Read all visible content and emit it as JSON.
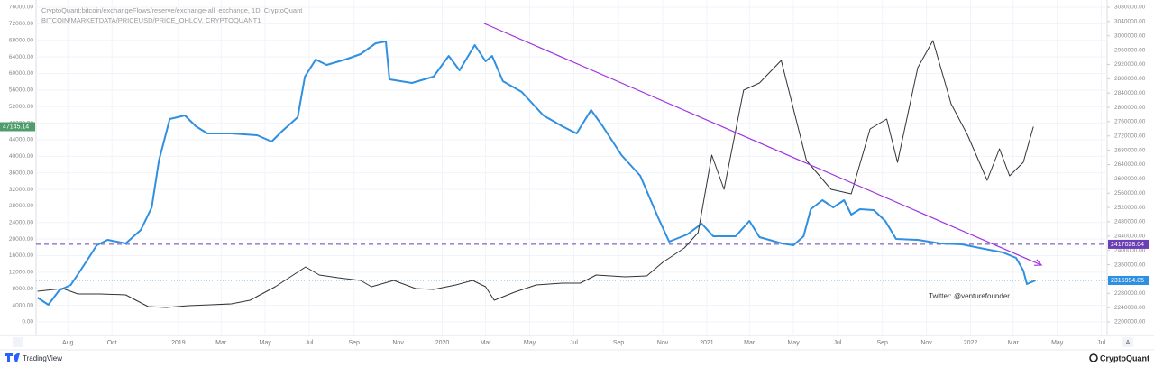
{
  "chart_data": {
    "type": "line",
    "xlim": [
      "2018-06-18",
      "2022-07-09"
    ],
    "ylim": [
      -3266,
      77742
    ],
    "y2lim": [
      2162178,
      3100176
    ],
    "grid": true,
    "xticks": [
      {
        "value": "2018-08-01",
        "label": "Aug"
      },
      {
        "value": "2018-10-01",
        "label": "Oct"
      },
      {
        "value": "2019-01-01",
        "label": "2019"
      },
      {
        "value": "2019-03-01",
        "label": "Mar"
      },
      {
        "value": "2019-05-01",
        "label": "May"
      },
      {
        "value": "2019-07-01",
        "label": "Jul"
      },
      {
        "value": "2019-09-01",
        "label": "Sep"
      },
      {
        "value": "2019-11-01",
        "label": "Nov"
      },
      {
        "value": "2020-01-01",
        "label": "2020"
      },
      {
        "value": "2020-03-01",
        "label": "Mar"
      },
      {
        "value": "2020-05-01",
        "label": "May"
      },
      {
        "value": "2020-07-01",
        "label": "Jul"
      },
      {
        "value": "2020-09-01",
        "label": "Sep"
      },
      {
        "value": "2020-11-01",
        "label": "Nov"
      },
      {
        "value": "2021-01-01",
        "label": "2021"
      },
      {
        "value": "2021-03-01",
        "label": "Mar"
      },
      {
        "value": "2021-05-01",
        "label": "May"
      },
      {
        "value": "2021-07-01",
        "label": "Jul"
      },
      {
        "value": "2021-09-01",
        "label": "Sep"
      },
      {
        "value": "2021-11-01",
        "label": "Nov"
      },
      {
        "value": "2022-01-01",
        "label": "2022"
      },
      {
        "value": "2022-03-01",
        "label": "Mar"
      },
      {
        "value": "2022-05-01",
        "label": "May"
      },
      {
        "value": "2022-07-01",
        "label": "Jul"
      }
    ],
    "yticks": [
      {
        "value": 76000,
        "label": "76000.00"
      },
      {
        "value": 72000,
        "label": "72000.00"
      },
      {
        "value": 68000,
        "label": "68000.00"
      },
      {
        "value": 64000,
        "label": "64000.00"
      },
      {
        "value": 60000,
        "label": "60000.00"
      },
      {
        "value": 56000,
        "label": "56000.00"
      },
      {
        "value": 52000,
        "label": "52000.00"
      },
      {
        "value": 48000,
        "label": "48000.00"
      },
      {
        "value": 44000,
        "label": "44000.00"
      },
      {
        "value": 40000,
        "label": "40000.00"
      },
      {
        "value": 36000,
        "label": "36000.00"
      },
      {
        "value": 32000,
        "label": "32000.00"
      },
      {
        "value": 28000,
        "label": "28000.00"
      },
      {
        "value": 24000,
        "label": "24000.00"
      },
      {
        "value": 20000,
        "label": "20000.00"
      },
      {
        "value": 16000,
        "label": "16000.00"
      },
      {
        "value": 12000,
        "label": "12000.00"
      },
      {
        "value": 8000,
        "label": "8000.00"
      },
      {
        "value": 4000,
        "label": "4000.00"
      },
      {
        "value": 0,
        "label": "0.00"
      }
    ],
    "y2ticks": [
      {
        "value": 3080000,
        "label": "3080000.00"
      },
      {
        "value": 3040000,
        "label": "3040000.00"
      },
      {
        "value": 3000000,
        "label": "3000000.00"
      },
      {
        "value": 2960000,
        "label": "2960000.00"
      },
      {
        "value": 2920000,
        "label": "2920000.00"
      },
      {
        "value": 2880000,
        "label": "2880000.00"
      },
      {
        "value": 2840000,
        "label": "2840000.00"
      },
      {
        "value": 2800000,
        "label": "2800000.00"
      },
      {
        "value": 2760000,
        "label": "2760000.00"
      },
      {
        "value": 2720000,
        "label": "2720000.00"
      },
      {
        "value": 2680000,
        "label": "2680000.00"
      },
      {
        "value": 2640000,
        "label": "2640000.00"
      },
      {
        "value": 2600000,
        "label": "2600000.00"
      },
      {
        "value": 2560000,
        "label": "2560000.00"
      },
      {
        "value": 2520000,
        "label": "2520000.00"
      },
      {
        "value": 2480000,
        "label": "2480000.00"
      },
      {
        "value": 2440000,
        "label": "2440000.00"
      },
      {
        "value": 2400000,
        "label": "2400000.00"
      },
      {
        "value": 2360000,
        "label": "2360000.00"
      },
      {
        "value": 2320000,
        "label": "2320000.00"
      },
      {
        "value": 2280000,
        "label": "2280000.00"
      },
      {
        "value": 2240000,
        "label": "2240000.00"
      },
      {
        "value": 2200000,
        "label": "2200000.00"
      }
    ],
    "series": [
      {
        "name": "CryptoQuant:bitcoin/exchangeFlows/reserve/exchange-all_exchange, 1D, CryptoQuant",
        "color": "#2f8fe0",
        "axis": "y2",
        "x": [
          "2018-06-20",
          "2018-07-05",
          "2018-07-20",
          "2018-08-05",
          "2018-08-25",
          "2018-09-10",
          "2018-09-25",
          "2018-10-20",
          "2018-11-10",
          "2018-11-25",
          "2018-12-05",
          "2018-12-20",
          "2019-01-10",
          "2019-01-25",
          "2019-02-10",
          "2019-03-15",
          "2019-04-20",
          "2019-05-10",
          "2019-05-25",
          "2019-06-15",
          "2019-06-25",
          "2019-07-10",
          "2019-07-25",
          "2019-08-20",
          "2019-09-10",
          "2019-10-01",
          "2019-10-15",
          "2019-10-20",
          "2019-11-20",
          "2019-12-20",
          "2020-01-10",
          "2020-01-25",
          "2020-02-15",
          "2020-03-01",
          "2020-03-10",
          "2020-03-25",
          "2020-04-20",
          "2020-05-20",
          "2020-06-15",
          "2020-07-05",
          "2020-07-25",
          "2020-08-10",
          "2020-09-05",
          "2020-10-01",
          "2020-10-25",
          "2020-11-10",
          "2020-12-05",
          "2020-12-25",
          "2021-01-10",
          "2021-02-10",
          "2021-03-01",
          "2021-03-15",
          "2021-04-15",
          "2021-05-01",
          "2021-05-15",
          "2021-05-25",
          "2021-06-10",
          "2021-06-25",
          "2021-07-10",
          "2021-07-20",
          "2021-08-01",
          "2021-08-20",
          "2021-09-05",
          "2021-09-20",
          "2021-10-20",
          "2021-11-20",
          "2021-12-20",
          "2022-01-20",
          "2022-02-15",
          "2022-03-05",
          "2022-03-15",
          "2022-03-20",
          "2022-04-01"
        ],
        "values": [
          2268080,
          2247900,
          2288250,
          2303380,
          2363900,
          2414330,
          2429460,
          2419370,
          2457200,
          2520230,
          2651350,
          2767340,
          2777430,
          2747170,
          2727000,
          2727000,
          2721950,
          2704300,
          2734560,
          2772380,
          2885850,
          2933760,
          2918630,
          2933760,
          2948890,
          2979140,
          2984190,
          2878290,
          2868200,
          2885850,
          2943840,
          2903490,
          2974100,
          2928720,
          2943840,
          2873230,
          2842980,
          2777430,
          2747170,
          2727000,
          2792550,
          2747170,
          2666480,
          2608480,
          2495020,
          2424410,
          2444580,
          2474840,
          2439540,
          2439540,
          2482410,
          2437020,
          2419370,
          2414330,
          2439540,
          2515190,
          2540400,
          2520230,
          2540400,
          2500060,
          2515190,
          2512670,
          2482410,
          2431980,
          2429460,
          2419370,
          2416850,
          2404240,
          2394150,
          2379020,
          2343720,
          2305900,
          2315994.85
        ]
      },
      {
        "name": "BITCOIN/MARKETDATA/PRICEUSD/PRICE_OHLCV, CRYPTOQUANT1",
        "color": "#333333",
        "axis": "y",
        "x": [
          "2018-06-20",
          "2018-07-25",
          "2018-08-15",
          "2018-09-15",
          "2018-10-20",
          "2018-11-20",
          "2018-12-15",
          "2019-01-15",
          "2019-02-15",
          "2019-03-15",
          "2019-04-10",
          "2019-05-15",
          "2019-06-26",
          "2019-07-15",
          "2019-08-10",
          "2019-09-10",
          "2019-09-25",
          "2019-10-26",
          "2019-11-25",
          "2019-12-20",
          "2020-01-20",
          "2020-02-12",
          "2020-03-01",
          "2020-03-13",
          "2020-04-10",
          "2020-05-10",
          "2020-06-15",
          "2020-07-10",
          "2020-08-01",
          "2020-09-10",
          "2020-10-10",
          "2020-11-01",
          "2020-12-01",
          "2020-12-20",
          "2021-01-08",
          "2021-01-25",
          "2021-02-21",
          "2021-03-15",
          "2021-04-14",
          "2021-05-19",
          "2021-06-22",
          "2021-07-20",
          "2021-08-15",
          "2021-09-07",
          "2021-09-22",
          "2021-10-20",
          "2021-11-10",
          "2021-12-05",
          "2021-12-28",
          "2022-01-24",
          "2022-02-10",
          "2022-02-24",
          "2022-03-15",
          "2022-03-29"
        ],
        "values": [
          7400,
          8060,
          6750,
          6750,
          6530,
          3700,
          3480,
          3920,
          4140,
          4360,
          5230,
          8490,
          13280,
          11320,
          10670,
          10020,
          8490,
          10020,
          8060,
          7840,
          8930,
          10020,
          8490,
          5230,
          7190,
          8930,
          9360,
          9360,
          11320,
          10890,
          11110,
          14370,
          17860,
          21560,
          40290,
          32010,
          55970,
          57710,
          63150,
          38980,
          32010,
          30920,
          46600,
          49000,
          38550,
          61410,
          67940,
          52700,
          45080,
          34190,
          41810,
          35280,
          38550,
          47145.14
        ]
      }
    ],
    "hline": {
      "value": 2417028.04,
      "axis": "y2",
      "color": "#6a3fb5"
    },
    "trend_line": {
      "x": [
        "2020-02-28",
        "2022-04-09"
      ],
      "values": [
        3034600,
        2358900
      ],
      "axis": "y2",
      "color": "#a033e0"
    },
    "annotation": "Twitter: @venturefounder"
  },
  "footer": {
    "left_logo": "TradingView",
    "right_logo": "CryptoQuant",
    "scale_button": "A"
  }
}
